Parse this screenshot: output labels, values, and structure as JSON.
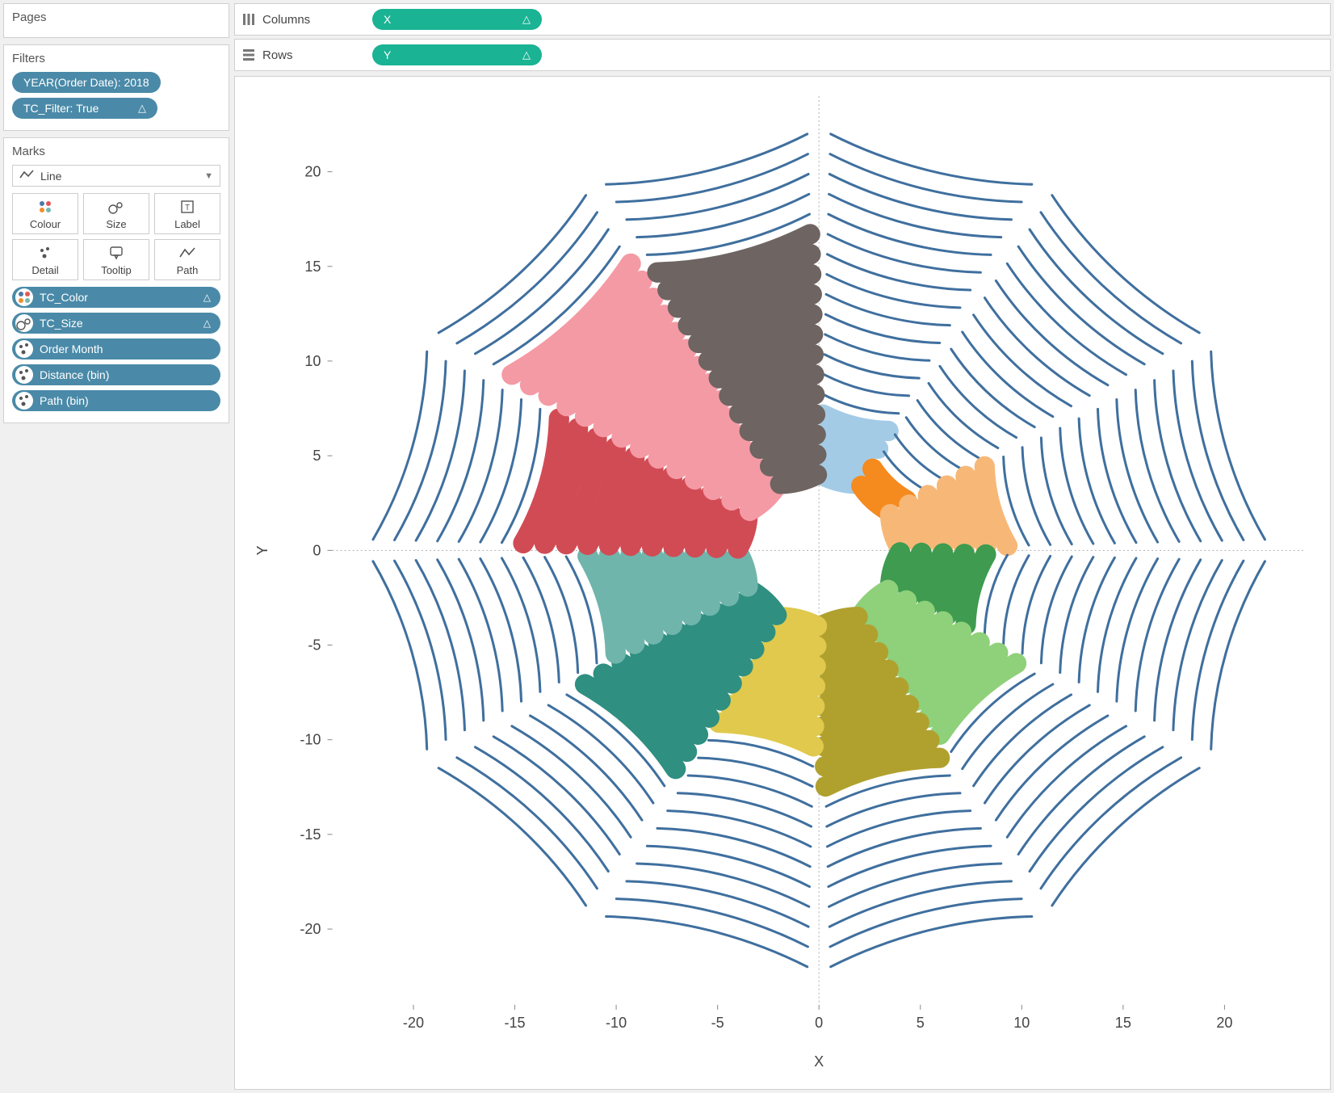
{
  "shelves": {
    "columns_label": "Columns",
    "rows_label": "Rows",
    "columns_pill": "X",
    "rows_pill": "Y"
  },
  "pages": {
    "title": "Pages"
  },
  "filters": {
    "title": "Filters",
    "items": [
      {
        "label": "YEAR(Order Date): 2018",
        "delta": false
      },
      {
        "label": "TC_Filter: True",
        "delta": true
      }
    ]
  },
  "marks": {
    "title": "Marks",
    "type_label": "Line",
    "options": [
      {
        "key": "colour",
        "label": "Colour"
      },
      {
        "key": "size",
        "label": "Size"
      },
      {
        "key": "label",
        "label": "Label"
      },
      {
        "key": "detail",
        "label": "Detail"
      },
      {
        "key": "tooltip",
        "label": "Tooltip"
      },
      {
        "key": "path",
        "label": "Path"
      }
    ],
    "pills": [
      {
        "icon": "dots4",
        "label": "TC_Color",
        "delta": true
      },
      {
        "icon": "sizeblob",
        "label": "TC_Size",
        "delta": true
      },
      {
        "icon": "detail3",
        "label": "Order Month",
        "delta": false
      },
      {
        "icon": "detail3",
        "label": "Distance (bin)",
        "delta": false
      },
      {
        "icon": "detail3",
        "label": "Path (bin)",
        "delta": false
      }
    ]
  },
  "chart": {
    "type": "radial",
    "x_label": "X",
    "y_label": "Y",
    "xlim": [
      -24,
      24
    ],
    "ylim": [
      -24,
      24
    ],
    "x_ticks": [
      -20,
      -15,
      -10,
      -5,
      0,
      5,
      10,
      15,
      20
    ],
    "y_ticks": [
      -20,
      -15,
      -10,
      -5,
      0,
      5,
      10,
      15,
      20
    ],
    "background_color": "#ffffff",
    "ring_line_color": "#3f6f9e",
    "ring_line_width": 3,
    "grid_color": "#b0b0b0",
    "n_segments": 12,
    "n_ring_levels": 18,
    "r_inner": 4.0,
    "r_outer": 22.0,
    "segment_gap_deg": 3,
    "segments": [
      {
        "start_deg": 60,
        "color": "#a4cbe6",
        "fill_levels": 4
      },
      {
        "start_deg": 30,
        "color": "#f58a1f",
        "fill_levels": 2
      },
      {
        "start_deg": 0,
        "color": "#f7b877",
        "fill_levels": 6
      },
      {
        "start_deg": -30,
        "color": "#3e9b4f",
        "fill_levels": 5
      },
      {
        "start_deg": -60,
        "color": "#8fd07a",
        "fill_levels": 8
      },
      {
        "start_deg": -90,
        "color": "#b0a12f",
        "fill_levels": 9
      },
      {
        "start_deg": -120,
        "color": "#e0c94c",
        "fill_levels": 7
      },
      {
        "start_deg": -150,
        "color": "#2f8f80",
        "fill_levels": 10
      },
      {
        "start_deg": -180,
        "color": "#6fb5ab",
        "fill_levels": 8
      },
      {
        "start_deg": -210,
        "color": "#d14b55",
        "fill_levels": 11
      },
      {
        "start_deg": -240,
        "color": "#f49aa4",
        "fill_levels": 14
      },
      {
        "start_deg": -270,
        "color": "#6e6461",
        "fill_levels": 13
      }
    ]
  }
}
